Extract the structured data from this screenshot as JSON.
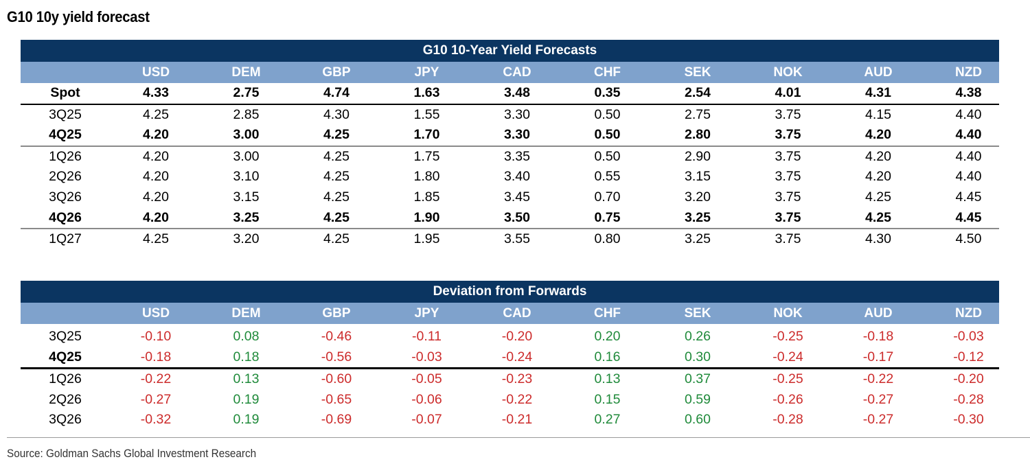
{
  "page_title": "G10 10y yield forecast",
  "currencies": [
    "USD",
    "DEM",
    "GBP",
    "JPY",
    "CAD",
    "CHF",
    "SEK",
    "NOK",
    "AUD",
    "NZD"
  ],
  "forecast_table": {
    "title": "G10 10-Year Yield Forecasts",
    "rows": [
      {
        "label": "Spot",
        "bold": true,
        "sep": "black",
        "values": [
          "4.33",
          "2.75",
          "4.74",
          "1.63",
          "3.48",
          "0.35",
          "2.54",
          "4.01",
          "4.31",
          "4.38"
        ]
      },
      {
        "label": "3Q25",
        "bold": false,
        "sep": "",
        "values": [
          "4.25",
          "2.85",
          "4.30",
          "1.55",
          "3.30",
          "0.50",
          "2.75",
          "3.75",
          "4.15",
          "4.40"
        ]
      },
      {
        "label": "4Q25",
        "bold": true,
        "sep": "grey",
        "values": [
          "4.20",
          "3.00",
          "4.25",
          "1.70",
          "3.30",
          "0.50",
          "2.80",
          "3.75",
          "4.20",
          "4.40"
        ]
      },
      {
        "label": "1Q26",
        "bold": false,
        "sep": "",
        "values": [
          "4.20",
          "3.00",
          "4.25",
          "1.75",
          "3.35",
          "0.50",
          "2.90",
          "3.75",
          "4.20",
          "4.40"
        ]
      },
      {
        "label": "2Q26",
        "bold": false,
        "sep": "",
        "values": [
          "4.20",
          "3.10",
          "4.25",
          "1.80",
          "3.40",
          "0.55",
          "3.15",
          "3.75",
          "4.20",
          "4.40"
        ]
      },
      {
        "label": "3Q26",
        "bold": false,
        "sep": "",
        "values": [
          "4.20",
          "3.15",
          "4.25",
          "1.85",
          "3.45",
          "0.70",
          "3.20",
          "3.75",
          "4.25",
          "4.45"
        ]
      },
      {
        "label": "4Q26",
        "bold": true,
        "sep": "grey",
        "values": [
          "4.20",
          "3.25",
          "4.25",
          "1.90",
          "3.50",
          "0.75",
          "3.25",
          "3.75",
          "4.25",
          "4.45"
        ]
      },
      {
        "label": "1Q27",
        "bold": false,
        "sep": "",
        "values": [
          "4.25",
          "3.20",
          "4.25",
          "1.95",
          "3.55",
          "0.80",
          "3.25",
          "3.75",
          "4.30",
          "4.50"
        ]
      }
    ]
  },
  "deviation_table": {
    "title": "Deviation from Forwards",
    "rows": [
      {
        "label": "3Q25",
        "bold": false,
        "sep": "",
        "values": [
          "-0.10",
          "0.08",
          "-0.46",
          "-0.11",
          "-0.20",
          "0.20",
          "0.26",
          "-0.25",
          "-0.18",
          "-0.03"
        ]
      },
      {
        "label": "4Q25",
        "bold": "label",
        "sep": "thick",
        "values": [
          "-0.18",
          "0.18",
          "-0.56",
          "-0.03",
          "-0.24",
          "0.16",
          "0.30",
          "-0.24",
          "-0.17",
          "-0.12"
        ]
      },
      {
        "label": "1Q26",
        "bold": false,
        "sep": "",
        "values": [
          "-0.22",
          "0.13",
          "-0.60",
          "-0.05",
          "-0.23",
          "0.13",
          "0.37",
          "-0.25",
          "-0.22",
          "-0.20"
        ]
      },
      {
        "label": "2Q26",
        "bold": false,
        "sep": "",
        "values": [
          "-0.27",
          "0.19",
          "-0.65",
          "-0.06",
          "-0.22",
          "0.15",
          "0.59",
          "-0.26",
          "-0.27",
          "-0.28"
        ]
      },
      {
        "label": "3Q26",
        "bold": false,
        "sep": "",
        "values": [
          "-0.32",
          "0.19",
          "-0.69",
          "-0.07",
          "-0.21",
          "0.27",
          "0.60",
          "-0.28",
          "-0.27",
          "-0.30"
        ]
      }
    ],
    "colors": {
      "negative": "#cc2b2b",
      "positive": "#1f8a3a"
    }
  },
  "source": "Source: Goldman Sachs Global Investment Research",
  "colors": {
    "banner": "#0b3561",
    "header": "#7fa2cc"
  }
}
